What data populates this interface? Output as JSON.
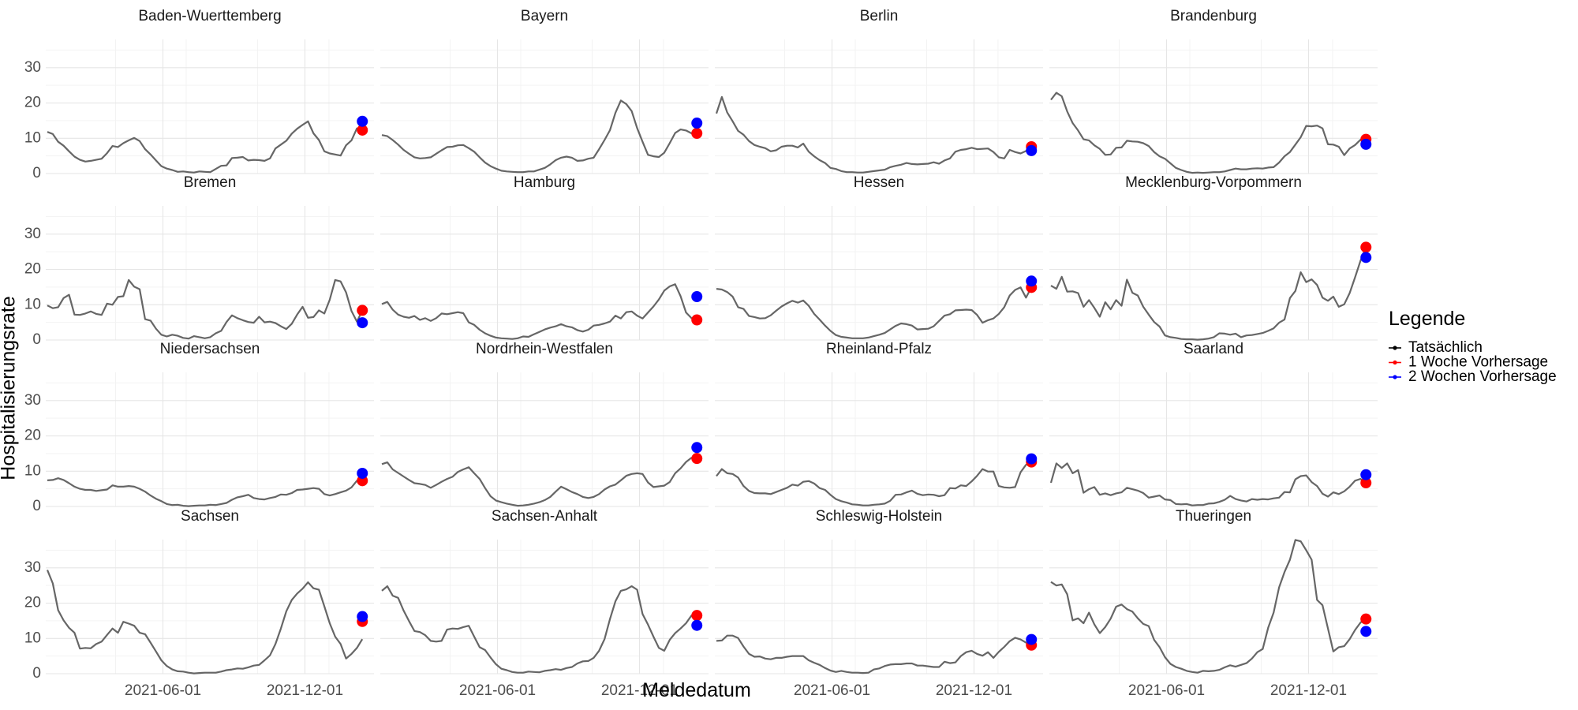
{
  "chart_data": {
    "type": "line",
    "title": "",
    "xlabel": "Meldedatum",
    "ylabel": "Hospitalisierungsrate",
    "x_ticks": [
      "2021-06-01",
      "2021-12-01"
    ],
    "y_ticks": [
      0,
      10,
      20,
      30
    ],
    "ylim": [
      0,
      38
    ],
    "xlim": [
      "2021-01-01",
      "2022-02-28"
    ],
    "grid": true,
    "legend": {
      "title": "Legende",
      "position": "right",
      "entries": [
        {
          "label": "Tatsächlich",
          "color": "#000000"
        },
        {
          "label": "1 Woche Vorhersage",
          "color": "#ff0000"
        },
        {
          "label": "2 Wochen Vorhersage",
          "color": "#0000ff"
        }
      ]
    },
    "dates": [
      "2021-01-03",
      "2021-01-10",
      "2021-01-17",
      "2021-01-24",
      "2021-01-31",
      "2021-02-07",
      "2021-02-14",
      "2021-02-21",
      "2021-02-28",
      "2021-03-07",
      "2021-03-14",
      "2021-03-21",
      "2021-03-28",
      "2021-04-04",
      "2021-04-11",
      "2021-04-18",
      "2021-04-25",
      "2021-05-02",
      "2021-05-09",
      "2021-05-16",
      "2021-05-23",
      "2021-05-30",
      "2021-06-06",
      "2021-06-13",
      "2021-06-20",
      "2021-06-27",
      "2021-07-04",
      "2021-07-11",
      "2021-07-18",
      "2021-07-25",
      "2021-08-01",
      "2021-08-08",
      "2021-08-15",
      "2021-08-22",
      "2021-08-29",
      "2021-09-05",
      "2021-09-12",
      "2021-09-19",
      "2021-09-26",
      "2021-10-03",
      "2021-10-10",
      "2021-10-17",
      "2021-10-24",
      "2021-10-31",
      "2021-11-07",
      "2021-11-14",
      "2021-11-21",
      "2021-11-28",
      "2021-12-05",
      "2021-12-12",
      "2021-12-19",
      "2021-12-26",
      "2022-01-02",
      "2022-01-09",
      "2022-01-16",
      "2022-01-23",
      "2022-01-30",
      "2022-02-06",
      "2022-02-13"
    ],
    "forecast_date": "2022-02-13",
    "panels": [
      {
        "name": "Baden-Wuerttemberg",
        "forecast_1w": 12.3,
        "forecast_2w": 14.8,
        "actual": [
          11.8,
          11.2,
          9,
          7.9,
          6.3,
          4.8,
          3.9,
          3.4,
          3.6,
          3.9,
          4.2,
          5.8,
          7.8,
          7.5,
          8.6,
          9.4,
          10.1,
          9.2,
          6.9,
          5.4,
          3.7,
          2.1,
          1.4,
          1,
          0.5,
          0.6,
          0.4,
          0.3,
          0.6,
          0.5,
          0.4,
          1.3,
          2.2,
          2.3,
          4.4,
          4.5,
          4.7,
          3.7,
          3.9,
          3.8,
          3.6,
          4.3,
          7.1,
          8.2,
          9.3,
          11.3,
          12.7,
          13.8,
          14.8,
          11.4,
          9.5,
          6.3,
          5.7,
          5.4,
          5.1,
          8,
          9.4,
          12.8,
          12.3
        ]
      },
      {
        "name": "Bayern",
        "forecast_1w": 11.4,
        "forecast_2w": 14.3,
        "actual": [
          10.9,
          10.6,
          9.5,
          8.2,
          6.7,
          5.6,
          4.6,
          4.3,
          4.4,
          4.6,
          5.6,
          6.6,
          7.5,
          7.6,
          8,
          8.1,
          7.2,
          6.2,
          4.6,
          3.1,
          2.1,
          1.4,
          0.8,
          0.6,
          0.5,
          0.4,
          0.4,
          0.6,
          0.6,
          1.1,
          1.6,
          2.6,
          3.8,
          4.5,
          4.8,
          4.5,
          3.6,
          3.7,
          4.2,
          4.5,
          6.9,
          9.5,
          12.3,
          17.2,
          20.7,
          19.7,
          17.7,
          12.9,
          9,
          5.3,
          4.9,
          4.7,
          5.9,
          8.6,
          11.5,
          12.5,
          12.2,
          11.4,
          11.4
        ]
      },
      {
        "name": "Berlin",
        "forecast_1w": 7.6,
        "forecast_2w": 6.5,
        "actual": [
          17,
          21.7,
          17.3,
          14.8,
          12.1,
          11,
          9.2,
          8.1,
          7.6,
          7.2,
          6.3,
          6.6,
          7.6,
          7.9,
          7.9,
          7.4,
          8.5,
          6.2,
          4.9,
          3.8,
          3,
          1.6,
          1.3,
          0.7,
          0.4,
          0.4,
          0.3,
          0.3,
          0.5,
          0.7,
          0.9,
          1.1,
          1.8,
          2.2,
          2.5,
          3,
          2.7,
          2.6,
          2.7,
          2.8,
          3.2,
          2.8,
          3.7,
          4.3,
          6.2,
          6.7,
          6.9,
          7.3,
          6.9,
          7,
          7.1,
          6.1,
          4.6,
          4.3,
          6.7,
          6.1,
          5.7,
          6.4,
          7.6
        ]
      },
      {
        "name": "Brandenburg",
        "forecast_1w": 9.7,
        "forecast_2w": 8.3,
        "actual": [
          20.9,
          22.9,
          21.9,
          17.6,
          14.3,
          12.2,
          9.7,
          9.4,
          8,
          7,
          5.3,
          5.4,
          7.3,
          7.4,
          9.3,
          9.1,
          9,
          8.6,
          7.8,
          6.1,
          4.9,
          4.2,
          2.9,
          1.6,
          1,
          0.5,
          0.2,
          0.3,
          0.2,
          0.3,
          0.4,
          0.4,
          0.6,
          1,
          1.4,
          1.2,
          1.2,
          1.4,
          1.5,
          1.4,
          1.7,
          1.8,
          3.1,
          4.9,
          6.1,
          8.2,
          10.3,
          13.5,
          13.4,
          13.6,
          12.8,
          8.3,
          8.2,
          7.6,
          5.2,
          7.1,
          8.1,
          9.6,
          9.7
        ]
      },
      {
        "name": "Bremen",
        "forecast_1w": 8.4,
        "forecast_2w": 4.9,
        "actual": [
          9.8,
          9,
          9.3,
          11.9,
          12.8,
          7.2,
          7.1,
          7.5,
          8.1,
          7.4,
          7.1,
          10.3,
          10,
          12.2,
          12.4,
          17,
          15.1,
          14.4,
          5.9,
          5.5,
          3.2,
          1.5,
          1,
          1.5,
          1.2,
          0.6,
          0.4,
          1.1,
          0.8,
          0.5,
          0.8,
          1.9,
          2.6,
          5.1,
          7,
          6.2,
          5.6,
          5.1,
          4.9,
          6.6,
          5,
          5.2,
          4.8,
          3.9,
          3.1,
          4.6,
          7.2,
          9.4,
          6.3,
          6.5,
          8.4,
          7.5,
          11.4,
          17,
          16.6,
          13.5,
          8.2,
          5.2,
          8.4
        ]
      },
      {
        "name": "Hamburg",
        "forecast_1w": 5.7,
        "forecast_2w": 12.3,
        "actual": [
          10.2,
          10.8,
          8.6,
          7.2,
          6.6,
          6.3,
          6.8,
          5.7,
          6.2,
          5.4,
          6.2,
          7.5,
          7.3,
          7.6,
          7.9,
          7.6,
          5,
          4.3,
          2.9,
          1.9,
          1.2,
          0.7,
          0.5,
          0.4,
          0.3,
          0.5,
          1,
          0.9,
          1.6,
          2.3,
          3,
          3.5,
          3.9,
          4.5,
          3.9,
          3.6,
          2.8,
          2.4,
          2.9,
          4.1,
          4.3,
          4.7,
          5.2,
          6.9,
          6.1,
          7.9,
          8.1,
          6.9,
          6.1,
          7.8,
          9.5,
          11.5,
          14,
          15.2,
          15.8,
          12.4,
          7.8,
          6.2,
          5.7
        ]
      },
      {
        "name": "Hessen",
        "forecast_1w": 14.9,
        "forecast_2w": 16.7,
        "actual": [
          14.5,
          14.3,
          13.6,
          12.3,
          9.3,
          8.8,
          6.8,
          6.5,
          6.1,
          6.2,
          7,
          8.3,
          9.5,
          10.4,
          11.1,
          10.6,
          11.2,
          9.7,
          7.4,
          5.8,
          4.1,
          2.6,
          1.4,
          0.9,
          0.7,
          0.5,
          0.5,
          0.5,
          0.7,
          1.1,
          1.5,
          2,
          3,
          4,
          4.7,
          4.5,
          4.1,
          3,
          3.1,
          3.2,
          3.9,
          5.4,
          6.9,
          7.3,
          8.4,
          8.5,
          8.6,
          8.5,
          7.1,
          4.9,
          5.6,
          6.1,
          7.4,
          9.3,
          12.6,
          14.2,
          14.9,
          12,
          14.9
        ]
      },
      {
        "name": "Mecklenburg-Vorpommern",
        "forecast_1w": 26.3,
        "forecast_2w": 23.4,
        "actual": [
          15.4,
          14.5,
          17.9,
          13.7,
          13.8,
          13.3,
          9.4,
          11.3,
          9.1,
          6.6,
          10.7,
          8.7,
          11.3,
          9.7,
          17.1,
          13.4,
          12.6,
          9.4,
          7.2,
          5.1,
          3.8,
          1.3,
          0.8,
          0.6,
          0.3,
          0.2,
          0.2,
          0.1,
          0.2,
          0.4,
          0.8,
          1.9,
          1.8,
          1.5,
          1.8,
          0.8,
          1.3,
          1.4,
          1.7,
          2,
          2.6,
          3.3,
          4.9,
          5.8,
          11.9,
          13.9,
          19.2,
          16.4,
          17.2,
          15.6,
          12,
          11.1,
          12.3,
          9.4,
          10.1,
          13.3,
          17.8,
          22.5,
          26.3
        ]
      },
      {
        "name": "Niedersachsen",
        "forecast_1w": 7.3,
        "forecast_2w": 9.4,
        "actual": [
          7.4,
          7.5,
          8,
          7.5,
          6.6,
          5.6,
          5,
          4.7,
          4.7,
          4.4,
          4.6,
          4.8,
          6,
          5.6,
          5.6,
          5.8,
          5.6,
          5,
          4.2,
          3.1,
          2.2,
          1.5,
          0.7,
          0.4,
          0.5,
          0.2,
          0.1,
          0.2,
          0.3,
          0.3,
          0.5,
          0.4,
          0.7,
          1,
          1.9,
          2.6,
          2.9,
          3.3,
          2.4,
          2.1,
          2,
          2.4,
          2.7,
          3.4,
          3.3,
          3.8,
          4.7,
          4.8,
          5,
          5.2,
          5,
          3.5,
          3.1,
          3.5,
          4,
          4.5,
          5.4,
          7.3,
          7.3
        ]
      },
      {
        "name": "Nordrhein-Westfalen",
        "forecast_1w": 13.6,
        "forecast_2w": 16.7,
        "actual": [
          12,
          12.5,
          10.5,
          9.5,
          8.5,
          7.5,
          6.6,
          6.4,
          6.1,
          5.3,
          6.1,
          7,
          7.8,
          8.4,
          9.8,
          10.5,
          11.1,
          9.4,
          7.8,
          5.2,
          2.9,
          1.7,
          1.2,
          0.8,
          0.5,
          0.2,
          0.3,
          0.5,
          0.8,
          1.2,
          1.8,
          2.7,
          4.2,
          5.6,
          4.9,
          4.1,
          3.5,
          2.7,
          2.4,
          2.7,
          3.5,
          4.8,
          5.7,
          6.2,
          7.4,
          8.7,
          9.2,
          9.4,
          9.2,
          6.8,
          5.5,
          5.7,
          5.9,
          6.9,
          9.4,
          10.8,
          12.6,
          13.8,
          13.6
        ]
      },
      {
        "name": "Rheinland-Pfalz",
        "forecast_1w": 12.6,
        "forecast_2w": 13.5,
        "actual": [
          8.6,
          10.6,
          9.4,
          9.2,
          8.2,
          5.8,
          4.4,
          3.8,
          3.7,
          3.7,
          3.5,
          4.1,
          4.7,
          5.3,
          6.2,
          5.9,
          7,
          7.2,
          6.5,
          5.2,
          4.7,
          3.3,
          2.1,
          1.5,
          1.1,
          0.6,
          0.5,
          0.3,
          0.3,
          0.5,
          0.6,
          0.8,
          1.6,
          3.3,
          3.4,
          4,
          4.5,
          3.6,
          3.2,
          3.4,
          3.3,
          2.9,
          3.2,
          5.2,
          5.1,
          6,
          5.8,
          7.1,
          8.7,
          10.6,
          9.9,
          9.9,
          5.8,
          5.4,
          5.3,
          5.5,
          9.7,
          11.8,
          12.6
        ]
      },
      {
        "name": "Saarland",
        "forecast_1w": 6.7,
        "forecast_2w": 9,
        "actual": [
          6.7,
          12.2,
          10.9,
          12.2,
          9.4,
          10.3,
          3.9,
          4.9,
          5.5,
          3.3,
          3.7,
          3.2,
          3.7,
          4,
          5.3,
          4.9,
          4.5,
          3.8,
          2.5,
          2.8,
          3.1,
          2,
          1.8,
          0.7,
          0.6,
          0.7,
          0.3,
          0.4,
          0.4,
          0.8,
          0.9,
          1.3,
          1.9,
          3,
          2.1,
          1.7,
          1.4,
          2.1,
          1.9,
          2.1,
          2,
          2.3,
          2.5,
          4.1,
          4,
          7.7,
          8.6,
          8.8,
          6.9,
          5.8,
          3.6,
          2.8,
          4,
          3.5,
          4.3,
          5.6,
          7.3,
          7.8,
          6.7
        ]
      },
      {
        "name": "Sachsen",
        "forecast_1w": 14.8,
        "forecast_2w": 16.2,
        "actual": [
          29.4,
          25.6,
          18,
          15.1,
          13,
          11.6,
          7.1,
          7.3,
          7.2,
          8.4,
          9.1,
          11,
          12.8,
          11.6,
          14.7,
          14.2,
          13.6,
          11.6,
          11.2,
          8.8,
          6.3,
          3.8,
          2.2,
          1.2,
          0.7,
          0.6,
          0.3,
          0.1,
          0.2,
          0.3,
          0.3,
          0.3,
          0.6,
          1,
          1.2,
          1.5,
          1.4,
          1.8,
          2.3,
          2.5,
          3.8,
          5.2,
          8.4,
          12.8,
          17.7,
          20.9,
          22.7,
          24.1,
          25.9,
          24.2,
          23.8,
          19.1,
          14.3,
          10.5,
          8.4,
          4.3,
          5.6,
          7.3,
          9.8
        ]
      },
      {
        "name": "Sachsen-Anhalt",
        "forecast_1w": 16.5,
        "forecast_2w": 13.7,
        "actual": [
          23.5,
          24.8,
          22.1,
          21.5,
          17.9,
          14.9,
          12.1,
          11.8,
          10.9,
          9.3,
          9.1,
          9.3,
          12.5,
          12.8,
          12.7,
          13.2,
          13.6,
          10.5,
          7.5,
          6.7,
          4.6,
          2.7,
          1.4,
          1,
          0.5,
          0.3,
          0.3,
          0.6,
          0.5,
          0.4,
          0.8,
          1,
          1.3,
          1.1,
          1.6,
          1.9,
          2.9,
          3.5,
          3.6,
          4.5,
          6.5,
          9.8,
          15.5,
          20.5,
          23.5,
          23.9,
          24.8,
          23.8,
          16.9,
          13.9,
          10.5,
          7.3,
          6.5,
          9.6,
          11.5,
          12.8,
          14.3,
          16.5,
          16.5
        ]
      },
      {
        "name": "Schleswig-Holstein",
        "forecast_1w": 8.1,
        "forecast_2w": 9.7,
        "actual": [
          9.3,
          9.4,
          10.8,
          10.8,
          10.1,
          7.7,
          5.6,
          4.8,
          4.9,
          4.3,
          4.1,
          4.5,
          4.5,
          4.8,
          5,
          5,
          5,
          3.8,
          3.1,
          2.5,
          1.6,
          0.9,
          0.5,
          0.8,
          0.5,
          0.3,
          0.3,
          0.2,
          0.3,
          1.2,
          1.5,
          2.2,
          2.6,
          2.7,
          2.7,
          2.9,
          2.9,
          2.3,
          2.3,
          2.1,
          1.9,
          1.9,
          3.4,
          3,
          3.2,
          5,
          6.1,
          6.5,
          5.6,
          5.1,
          6.1,
          4.5,
          6.2,
          7.6,
          9.2,
          10.2,
          9.7,
          8.8,
          8.1
        ]
      },
      {
        "name": "Thueringen",
        "forecast_1w": 15.5,
        "forecast_2w": 12,
        "actual": [
          26,
          25,
          25.3,
          22.5,
          15.1,
          15.7,
          14.3,
          17.3,
          14,
          11.5,
          13.2,
          15.6,
          19,
          19.6,
          18.3,
          17.6,
          15.7,
          14.1,
          13.5,
          9.6,
          7.5,
          4.7,
          2.8,
          1.9,
          1.4,
          0.8,
          0.5,
          0.3,
          0.8,
          0.7,
          0.8,
          1.1,
          1.8,
          2.4,
          2,
          2.5,
          3,
          4.3,
          6.1,
          7,
          13,
          17.3,
          24.4,
          28.8,
          32.3,
          37.9,
          37.5,
          35,
          32.3,
          20.9,
          19.4,
          12.8,
          6.3,
          7.5,
          7.8,
          9.8,
          12.4,
          14.5,
          15.5
        ]
      }
    ]
  }
}
